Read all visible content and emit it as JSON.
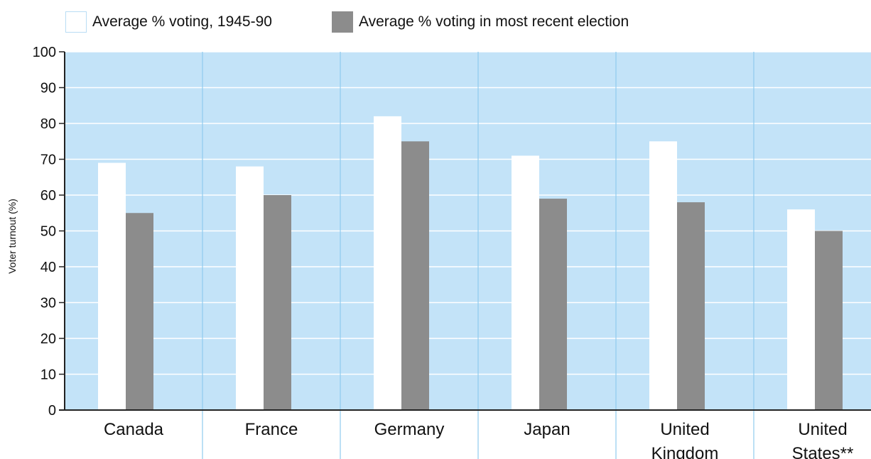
{
  "chart_data": {
    "type": "bar",
    "title": "",
    "ylabel": "Voter turnout (%)",
    "xlabel": "",
    "ylim": [
      0,
      100
    ],
    "yticks": [
      0,
      10,
      20,
      30,
      40,
      50,
      60,
      70,
      80,
      90,
      100
    ],
    "categories": [
      [
        "Canada"
      ],
      [
        "France"
      ],
      [
        "Germany"
      ],
      [
        "Japan"
      ],
      [
        "United",
        "Kingdom"
      ],
      [
        "United",
        "States**"
      ]
    ],
    "series": [
      {
        "name": "Average % voting, 1945-90",
        "color": "#ffffff",
        "values": [
          69,
          68,
          82,
          71,
          75,
          56
        ]
      },
      {
        "name": "Average % voting in most recent election",
        "color": "#8c8c8c",
        "values": [
          55,
          60,
          75,
          59,
          58,
          50
        ]
      }
    ],
    "plot_background": "#c3e3f8",
    "grid": true,
    "legend": "top-left"
  }
}
